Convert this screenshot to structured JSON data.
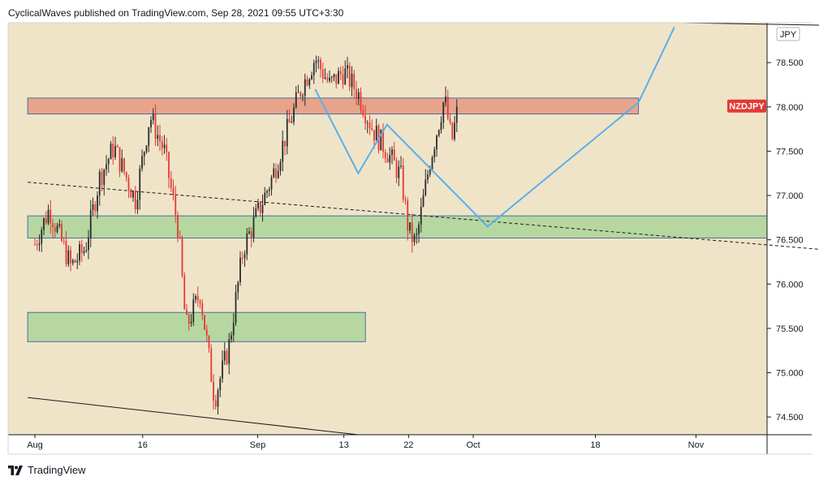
{
  "header": {
    "publish_line": "CyclicalWaves published on TradingView.com, Sep 28, 2021 09:55 UTC+3:30"
  },
  "footer": {
    "brand": "TradingView"
  },
  "colors": {
    "background": "#efe4c8",
    "resistance_zone": "#e8a48b",
    "support_zone": "#b6d7a0",
    "bull": "#2b2b2b",
    "bear": "#e53935",
    "projection_line": "#5aafea",
    "symbol_badge": "#e53935"
  },
  "chart_data": {
    "type": "candlestick",
    "symbol_badge": "NZDJPY",
    "currency_badge": "JPY",
    "ylim": [
      74.3,
      78.95
    ],
    "y_ticks": [
      74.5,
      75.0,
      75.5,
      76.0,
      76.5,
      77.0,
      77.5,
      78.0,
      78.5
    ],
    "y_tick_labels": [
      "74.500",
      "75.000",
      "75.500",
      "76.000",
      "76.500",
      "77.000",
      "77.500",
      "78.000",
      "78.500"
    ],
    "x_tick_labels": [
      "Aug",
      "16",
      "Sep",
      "13",
      "22",
      "Oct",
      "18",
      "Nov"
    ],
    "last_price": 78.01,
    "price_path": [
      [
        "Aug 1",
        76.45
      ],
      [
        "Aug 3",
        76.85
      ],
      [
        "Aug 6",
        76.2
      ],
      [
        "Aug 8",
        76.4
      ],
      [
        "Aug 10",
        77.2
      ],
      [
        "Aug 12",
        77.55
      ],
      [
        "Aug 15",
        76.95
      ],
      [
        "Aug 17",
        77.9
      ],
      [
        "Aug 19",
        77.5
      ],
      [
        "Aug 21",
        76.6
      ],
      [
        "Aug 22",
        75.5
      ],
      [
        "Aug 24",
        75.9
      ],
      [
        "Aug 26",
        74.7
      ],
      [
        "Aug 28",
        75.3
      ],
      [
        "Aug 30",
        76.4
      ],
      [
        "Sep 1",
        76.8
      ],
      [
        "Sep 3",
        77.2
      ],
      [
        "Sep 5",
        77.7
      ],
      [
        "Sep 7",
        78.2
      ],
      [
        "Sep 9",
        78.55
      ],
      [
        "Sep 11",
        78.25
      ],
      [
        "Sep 13",
        78.4
      ],
      [
        "Sep 15",
        78.15
      ],
      [
        "Sep 17",
        77.75
      ],
      [
        "Sep 19",
        77.5
      ],
      [
        "Sep 21",
        77.2
      ],
      [
        "Sep 22",
        76.6
      ],
      [
        "Sep 23",
        76.45
      ],
      [
        "Sep 25",
        77.4
      ],
      [
        "Sep 27",
        78.1
      ],
      [
        "Sep 28",
        77.6
      ],
      [
        "Sep 29",
        78.05
      ]
    ],
    "zones": [
      {
        "name": "resistance",
        "y_top": 78.1,
        "y_bottom": 77.92,
        "x_start": "Jul 31",
        "x_end": "Oct 24"
      },
      {
        "name": "support-upper",
        "y_top": 76.77,
        "y_bottom": 76.52,
        "x_start": "Jul 31",
        "x_end": "Nov 20"
      },
      {
        "name": "support-lower",
        "y_top": 75.68,
        "y_bottom": 75.35,
        "x_start": "Jul 31",
        "x_end": "Sep 16"
      }
    ],
    "projection_path": [
      [
        "Sep 9",
        78.2
      ],
      [
        "Sep 15",
        77.25
      ],
      [
        "Sep 19",
        77.8
      ],
      [
        "Oct 3",
        76.65
      ],
      [
        "Oct 24",
        78.05
      ],
      [
        "Oct 29",
        78.9
      ]
    ],
    "trend_lines": [
      {
        "style": "dashed",
        "points": [
          [
            "Jul 31",
            77.15
          ],
          [
            "Nov 20",
            76.38
          ]
        ]
      },
      {
        "style": "solid",
        "points": [
          [
            "Jul 31",
            74.72
          ],
          [
            "Sep 15",
            74.3
          ]
        ]
      },
      {
        "style": "solid",
        "points": [
          [
            "Oct 30",
            78.95
          ],
          [
            "Nov 20",
            78.92
          ]
        ]
      }
    ]
  }
}
